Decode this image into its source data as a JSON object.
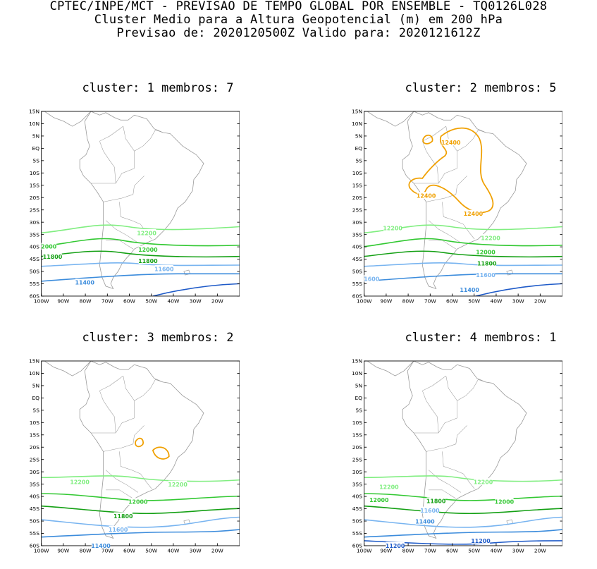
{
  "header": {
    "line1": "CPTEC/INPE/MCT - PREVISAO DE TEMPO GLOBAL POR ENSEMBLE - TQ0126L028",
    "line2": "Cluster Medio para a Altura Geopotencial (m) em 200 hPa",
    "line3": "Previsao de: 2020120500Z   Valido para: 2020121612Z"
  },
  "axes": {
    "lat_labels": [
      "15N",
      "10N",
      "5N",
      "EQ",
      "5S",
      "10S",
      "15S",
      "20S",
      "25S",
      "30S",
      "35S",
      "40S",
      "45S",
      "50S",
      "55S",
      "60S"
    ],
    "lon_labels": [
      "100W",
      "90W",
      "80W",
      "70W",
      "60W",
      "50W",
      "40W",
      "30W",
      "20W"
    ]
  },
  "colors": {
    "c12400": "#f0a000",
    "c12200": "#80ee80",
    "c12000": "#32c832",
    "c11800": "#14a014",
    "c11600": "#78b4f0",
    "c11400": "#3c8cdc",
    "c11200": "#1e5ac8",
    "land": "#999999"
  },
  "panels": [
    {
      "title": "cluster: 1   membros: 7",
      "contours": [
        {
          "level": "12200",
          "color": "#80ee80",
          "labels": [
            "12200"
          ]
        },
        {
          "level": "12000",
          "color": "#32c832",
          "labels": [
            "12000",
            "2000"
          ]
        },
        {
          "level": "11800",
          "color": "#14a014",
          "labels": [
            "11800",
            "11800"
          ]
        },
        {
          "level": "11600",
          "color": "#78b4f0",
          "labels": [
            "11600"
          ]
        },
        {
          "level": "11400",
          "color": "#3c8cdc",
          "labels": [
            "11400"
          ]
        },
        {
          "level": "11200",
          "color": "#1e5ac8",
          "labels": []
        }
      ]
    },
    {
      "title": "cluster: 2   membros: 5",
      "contours": [
        {
          "level": "12400",
          "color": "#f0a000",
          "labels": [
            "12400",
            "12400",
            "12400"
          ]
        },
        {
          "level": "12200",
          "color": "#80ee80",
          "labels": [
            "12200",
            "12200"
          ]
        },
        {
          "level": "12000",
          "color": "#32c832",
          "labels": [
            "12000"
          ]
        },
        {
          "level": "11800",
          "color": "#14a014",
          "labels": [
            "11800"
          ]
        },
        {
          "level": "11600",
          "color": "#78b4f0",
          "labels": [
            "11600",
            "1600"
          ]
        },
        {
          "level": "11400",
          "color": "#3c8cdc",
          "labels": [
            "11400"
          ]
        },
        {
          "level": "11200",
          "color": "#1e5ac8",
          "labels": []
        }
      ]
    },
    {
      "title": "cluster: 3   membros: 2",
      "contours": [
        {
          "level": "12400",
          "color": "#f0a000",
          "labels": []
        },
        {
          "level": "12200",
          "color": "#80ee80",
          "labels": [
            "12200",
            "12200"
          ]
        },
        {
          "level": "12000",
          "color": "#32c832",
          "labels": [
            "12000"
          ]
        },
        {
          "level": "11800",
          "color": "#14a014",
          "labels": [
            "11800"
          ]
        },
        {
          "level": "11600",
          "color": "#78b4f0",
          "labels": [
            "11600"
          ]
        },
        {
          "level": "11400",
          "color": "#3c8cdc",
          "labels": [
            "11400"
          ]
        }
      ]
    },
    {
      "title": "cluster: 4   membros: 1",
      "contours": [
        {
          "level": "12200",
          "color": "#80ee80",
          "labels": [
            "12200",
            "12200"
          ]
        },
        {
          "level": "12000",
          "color": "#32c832",
          "labels": [
            "12000",
            "12000"
          ]
        },
        {
          "level": "11800",
          "color": "#14a014",
          "labels": [
            "11800"
          ]
        },
        {
          "level": "11600",
          "color": "#78b4f0",
          "labels": [
            "11600"
          ]
        },
        {
          "level": "11400",
          "color": "#3c8cdc",
          "labels": [
            "11400"
          ]
        },
        {
          "level": "11200",
          "color": "#1e5ac8",
          "labels": [
            "11200",
            "11200"
          ]
        }
      ]
    }
  ]
}
